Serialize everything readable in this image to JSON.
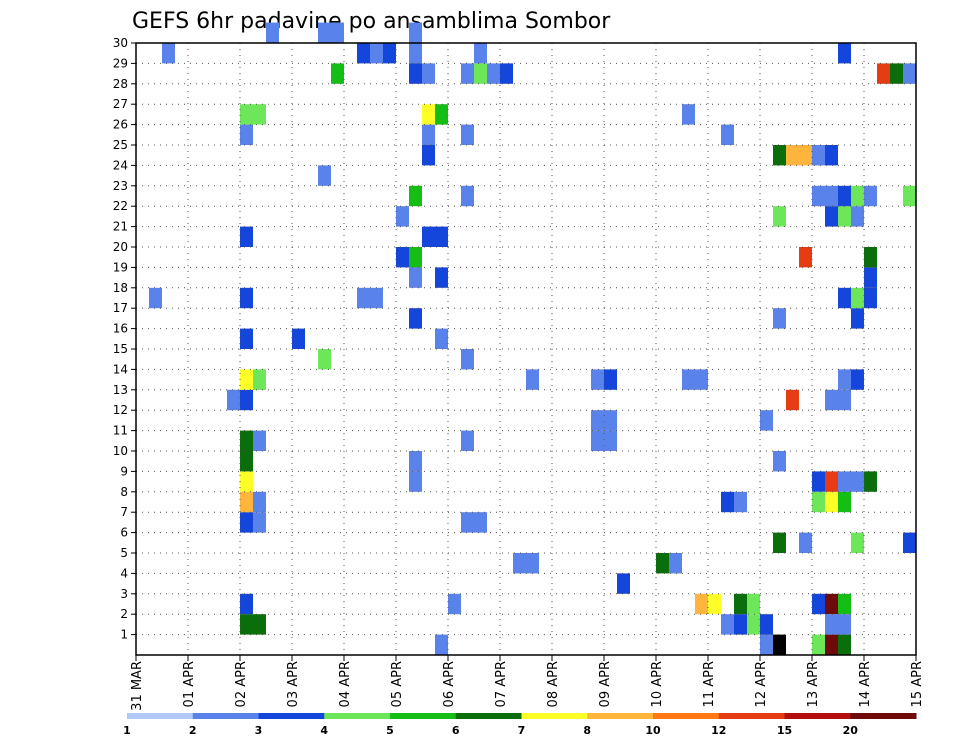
{
  "chart_data": {
    "type": "heatmap",
    "title": "GEFS 6hr padavine po ansamblima Sombor",
    "xlabel": "",
    "ylabel": "",
    "x_range": [
      0,
      60
    ],
    "y_range": [
      0,
      30
    ],
    "x_ticks": [
      {
        "at": 0,
        "label": "31 MAR"
      },
      {
        "at": 4,
        "label": "01 APR"
      },
      {
        "at": 8,
        "label": "02 APR"
      },
      {
        "at": 12,
        "label": "03 APR"
      },
      {
        "at": 16,
        "label": "04 APR"
      },
      {
        "at": 20,
        "label": "05 APR"
      },
      {
        "at": 24,
        "label": "06 APR"
      },
      {
        "at": 28,
        "label": "07 APR"
      },
      {
        "at": 32,
        "label": "08 APR"
      },
      {
        "at": 36,
        "label": "09 APR"
      },
      {
        "at": 40,
        "label": "10 APR"
      },
      {
        "at": 44,
        "label": "11 APR"
      },
      {
        "at": 48,
        "label": "12 APR"
      },
      {
        "at": 52,
        "label": "13 APR"
      },
      {
        "at": 56,
        "label": "14 APR"
      },
      {
        "at": 60,
        "label": "15 APR"
      }
    ],
    "y_ticks": [
      "1",
      "2",
      "3",
      "4",
      "5",
      "6",
      "7",
      "8",
      "9",
      "10",
      "11",
      "12",
      "13",
      "14",
      "15",
      "16",
      "17",
      "18",
      "19",
      "20",
      "21",
      "22",
      "23",
      "24",
      "25",
      "26",
      "27",
      "28",
      "29",
      "30"
    ],
    "grid": true,
    "legend": {
      "placement": "bottom",
      "labels": [
        "1",
        "2",
        "3",
        "4",
        "5",
        "6",
        "7",
        "8",
        "10",
        "12",
        "15",
        "20"
      ],
      "colors": [
        "#b4c8f5",
        "#5a82eb",
        "#1446dc",
        "#6ee65a",
        "#14be14",
        "#0a6e0a",
        "#ffff28",
        "#ffb43c",
        "#ff7814",
        "#e63c14",
        "#b40f0f",
        "#6e0a0a"
      ]
    },
    "cells": [
      [
        8,
        1,
        5
      ],
      [
        8,
        2,
        2
      ],
      [
        8,
        6,
        2
      ],
      [
        8,
        7,
        7
      ],
      [
        8,
        8,
        6
      ],
      [
        8,
        9,
        5
      ],
      [
        8,
        10,
        5
      ],
      [
        7,
        12,
        1
      ],
      [
        8,
        12,
        2
      ],
      [
        8,
        13,
        6
      ],
      [
        9,
        13,
        3
      ],
      [
        8,
        15,
        2
      ],
      [
        8,
        17,
        2
      ],
      [
        8,
        20,
        2
      ],
      [
        8,
        25,
        1
      ],
      [
        8,
        26,
        3
      ],
      [
        9,
        26,
        3
      ],
      [
        9,
        1,
        5
      ],
      [
        9,
        6,
        1
      ],
      [
        9,
        7,
        1
      ],
      [
        9,
        10,
        1
      ],
      [
        9,
        13,
        3
      ],
      [
        1,
        17,
        1
      ],
      [
        2,
        29,
        1
      ],
      [
        10,
        30,
        1
      ],
      [
        12,
        15,
        2
      ],
      [
        14,
        30,
        1
      ],
      [
        15,
        30,
        1
      ],
      [
        15,
        28,
        4
      ],
      [
        14,
        23,
        1
      ],
      [
        14,
        14,
        3
      ],
      [
        17,
        29,
        2
      ],
      [
        18,
        29,
        1
      ],
      [
        19,
        29,
        2
      ],
      [
        17,
        17,
        1
      ],
      [
        18,
        17,
        1
      ],
      [
        20,
        21,
        1
      ],
      [
        20,
        19,
        2
      ],
      [
        21,
        19,
        4
      ],
      [
        21,
        18,
        1
      ],
      [
        21,
        16,
        2
      ],
      [
        21,
        9,
        1
      ],
      [
        21,
        8,
        1
      ],
      [
        21,
        30,
        1
      ],
      [
        21,
        29,
        1
      ],
      [
        21,
        28,
        2
      ],
      [
        21,
        22,
        4
      ],
      [
        22,
        28,
        1
      ],
      [
        22,
        25,
        1
      ],
      [
        22,
        24,
        2
      ],
      [
        22,
        26,
        6
      ],
      [
        23,
        26,
        4
      ],
      [
        22,
        20,
        2
      ],
      [
        23,
        20,
        2
      ],
      [
        23,
        18,
        2
      ],
      [
        23,
        15,
        1
      ],
      [
        23,
        0,
        1
      ],
      [
        24,
        2,
        1
      ],
      [
        25,
        14,
        1
      ],
      [
        25,
        22,
        1
      ],
      [
        25,
        25,
        1
      ],
      [
        25,
        28,
        1
      ],
      [
        25,
        6,
        1
      ],
      [
        26,
        6,
        1
      ],
      [
        25,
        10,
        1
      ],
      [
        26,
        29,
        1
      ],
      [
        26,
        28,
        3
      ],
      [
        27,
        28,
        1
      ],
      [
        28,
        28,
        2
      ],
      [
        29,
        4,
        1
      ],
      [
        30,
        4,
        1
      ],
      [
        30,
        13,
        1
      ],
      [
        35,
        13,
        1
      ],
      [
        36,
        13,
        2
      ],
      [
        35,
        10,
        1
      ],
      [
        36,
        10,
        1
      ],
      [
        35,
        11,
        1
      ],
      [
        36,
        11,
        1
      ],
      [
        37,
        3,
        2
      ],
      [
        40,
        4,
        5
      ],
      [
        41,
        4,
        1
      ],
      [
        42,
        13,
        1
      ],
      [
        43,
        13,
        1
      ],
      [
        42,
        26,
        1
      ],
      [
        43,
        2,
        7
      ],
      [
        44,
        2,
        6
      ],
      [
        45,
        1,
        1
      ],
      [
        45,
        7,
        2
      ],
      [
        46,
        7,
        1
      ],
      [
        46,
        1,
        2
      ],
      [
        47,
        1,
        3
      ],
      [
        46,
        2,
        5
      ],
      [
        47,
        2,
        3
      ],
      [
        45,
        25,
        1
      ],
      [
        48,
        0,
        1
      ],
      [
        48,
        1,
        2
      ],
      [
        48,
        11,
        1
      ],
      [
        49,
        0,
        12
      ],
      [
        49,
        5,
        5
      ],
      [
        49,
        9,
        1
      ],
      [
        49,
        16,
        1
      ],
      [
        49,
        21,
        3
      ],
      [
        49,
        24,
        5
      ],
      [
        50,
        24,
        7
      ],
      [
        51,
        24,
        7
      ],
      [
        50,
        12,
        9
      ],
      [
        51,
        5,
        1
      ],
      [
        51,
        19,
        9
      ],
      [
        52,
        24,
        1
      ],
      [
        53,
        24,
        2
      ],
      [
        52,
        22,
        1
      ],
      [
        53,
        22,
        1
      ],
      [
        52,
        2,
        2
      ],
      [
        52,
        0,
        3
      ],
      [
        52,
        8,
        2
      ],
      [
        52,
        7,
        3
      ],
      [
        53,
        7,
        6
      ],
      [
        54,
        7,
        4
      ],
      [
        53,
        8,
        9
      ],
      [
        54,
        8,
        1
      ],
      [
        53,
        2,
        11
      ],
      [
        54,
        2,
        4
      ],
      [
        53,
        0,
        11
      ],
      [
        54,
        0,
        5
      ],
      [
        53,
        1,
        1
      ],
      [
        54,
        1,
        1
      ],
      [
        53,
        21,
        2
      ],
      [
        54,
        21,
        3
      ],
      [
        53,
        12,
        1
      ],
      [
        54,
        13,
        1
      ],
      [
        54,
        17,
        2
      ],
      [
        54,
        29,
        2
      ],
      [
        55,
        21,
        1
      ],
      [
        54,
        22,
        2
      ],
      [
        55,
        13,
        2
      ],
      [
        55,
        22,
        3
      ],
      [
        55,
        16,
        2
      ],
      [
        55,
        17,
        3
      ],
      [
        56,
        17,
        2
      ],
      [
        56,
        18,
        2
      ],
      [
        56,
        19,
        5
      ],
      [
        56,
        22,
        1
      ],
      [
        56,
        8,
        5
      ],
      [
        55,
        8,
        1
      ],
      [
        55,
        5,
        3
      ],
      [
        54,
        12,
        1
      ],
      [
        57,
        28,
        9
      ],
      [
        58,
        28,
        5
      ],
      [
        59,
        28,
        1
      ],
      [
        59,
        22,
        3
      ],
      [
        59,
        5,
        2
      ]
    ]
  }
}
